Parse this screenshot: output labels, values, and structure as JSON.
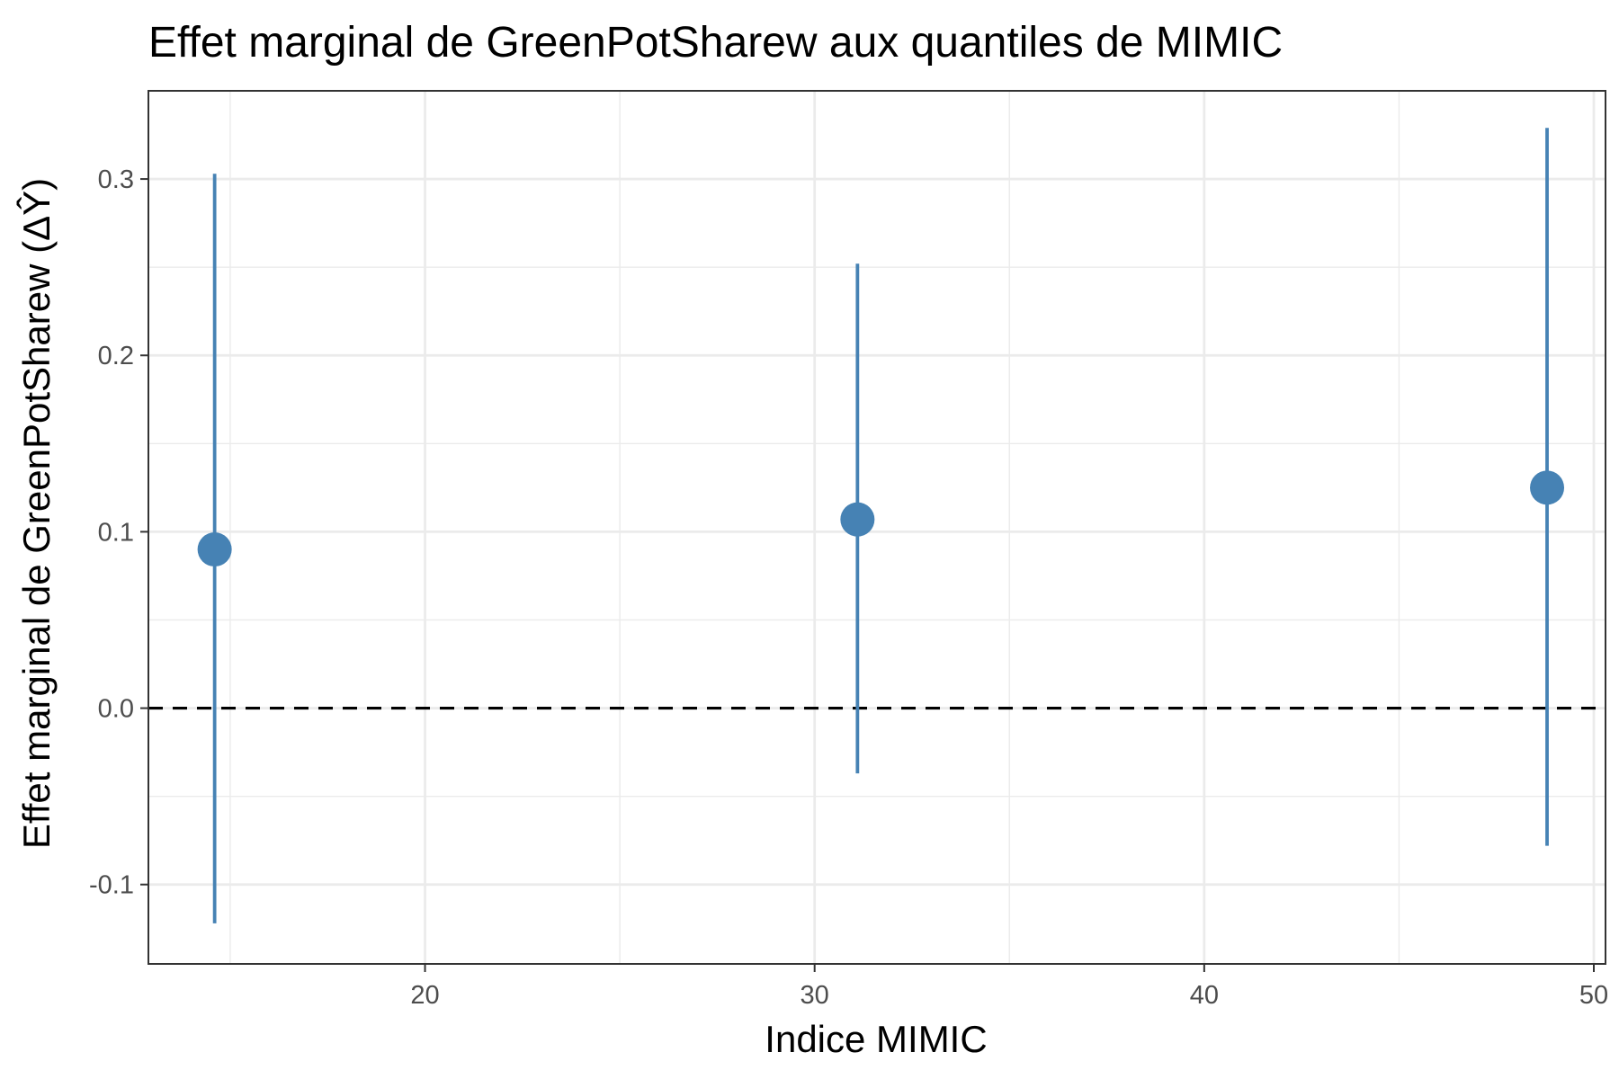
{
  "chart_data": {
    "type": "scatter",
    "title": "Effet marginal de GreenPotSharew aux quantiles de MIMIC",
    "xlabel": "Indice MIMIC",
    "ylabel": "Effet marginal de GreenPotSharew (ΔŶ)",
    "xlim": [
      12.9,
      50.3
    ],
    "ylim": [
      -0.145,
      0.35
    ],
    "x_ticks": [
      20,
      30,
      40,
      50
    ],
    "x_tick_labels": [
      "20",
      "30",
      "40",
      "50"
    ],
    "x_minor_ticks": [
      15,
      25,
      35,
      45
    ],
    "y_ticks": [
      -0.1,
      0.0,
      0.1,
      0.2,
      0.3
    ],
    "y_tick_labels": [
      "-0.1",
      "0.0",
      "0.1",
      "0.2",
      "0.3"
    ],
    "y_minor_ticks": [
      -0.05,
      0.05,
      0.15,
      0.25
    ],
    "reference_line": {
      "y": 0,
      "style": "dashed",
      "color": "#000000"
    },
    "grid": true,
    "series": [
      {
        "color": "#4682B4",
        "points": [
          {
            "x": 14.6,
            "y": 0.09,
            "lower": -0.122,
            "upper": 0.303
          },
          {
            "x": 31.1,
            "y": 0.107,
            "lower": -0.037,
            "upper": 0.252
          },
          {
            "x": 48.8,
            "y": 0.125,
            "lower": -0.078,
            "upper": 0.329
          }
        ]
      }
    ]
  }
}
